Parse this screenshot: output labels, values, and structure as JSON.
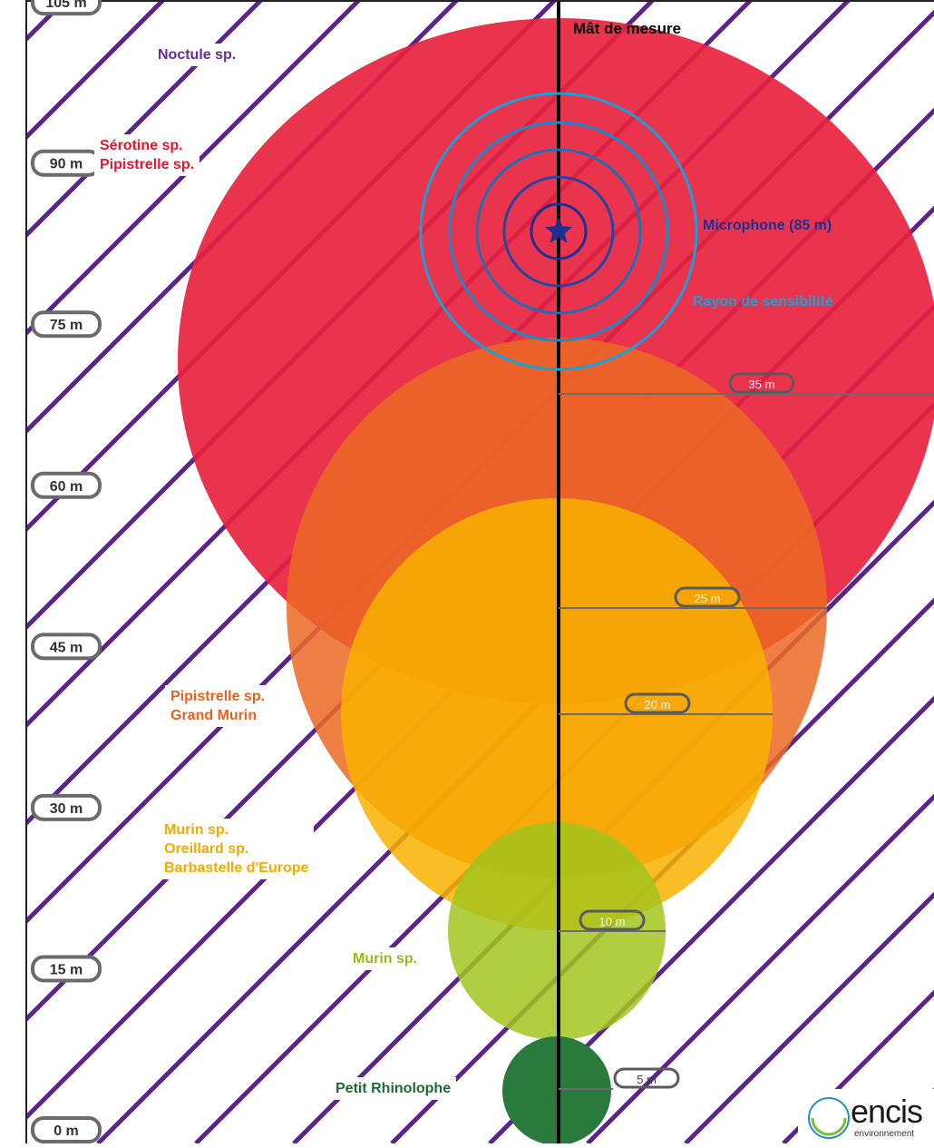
{
  "title": "Mât de mesure",
  "y_axis": {
    "unit": "m",
    "ticks": [
      "105 m",
      "90 m",
      "75 m",
      "60 m",
      "45 m",
      "30 m",
      "15 m",
      "0 m"
    ],
    "values": [
      105,
      90,
      75,
      60,
      45,
      30,
      15,
      0
    ]
  },
  "microphone": {
    "label": "Microphone (85 m)",
    "height_m": 85,
    "color": "#1f2f8f"
  },
  "sensitivity": {
    "label": "Rayon de sensibilité",
    "color": "#1aa0d8"
  },
  "zones": [
    {
      "key": "red",
      "radius_label": "35 m",
      "radius_m": 35,
      "color": "#e8223d",
      "species": [
        "Sérotine sp.",
        "Pipistrelle sp."
      ],
      "label_color": "#e2162e"
    },
    {
      "key": "orange",
      "radius_label": "25 m",
      "radius_m": 25,
      "color": "#ec6a25",
      "species": [
        "Pipistrelle sp.",
        "Grand Murin"
      ],
      "label_color": "#e9611d"
    },
    {
      "key": "yellow",
      "radius_label": "20 m",
      "radius_m": 20,
      "color": "#f8b100",
      "species": [
        "Murin sp.",
        "Oreillard sp.",
        "Barbastelle d'Europe"
      ],
      "label_color": "#f2a900"
    },
    {
      "key": "lime",
      "radius_label": "10 m",
      "radius_m": 10,
      "color": "#a3c41e",
      "species": [
        "Murin sp."
      ],
      "label_color": "#98bb16"
    },
    {
      "key": "green",
      "radius_label": "5 m",
      "radius_m": 5,
      "color": "#2a7a3e",
      "species": [
        "Petit Rhinolophe"
      ],
      "label_color": "#1d6b34"
    }
  ],
  "top_species": {
    "label": "Noctule sp.",
    "color": "#6a2c91"
  },
  "hatch_color": "#5b2489",
  "logo": {
    "name": "encis",
    "subtitle": "environnement"
  }
}
